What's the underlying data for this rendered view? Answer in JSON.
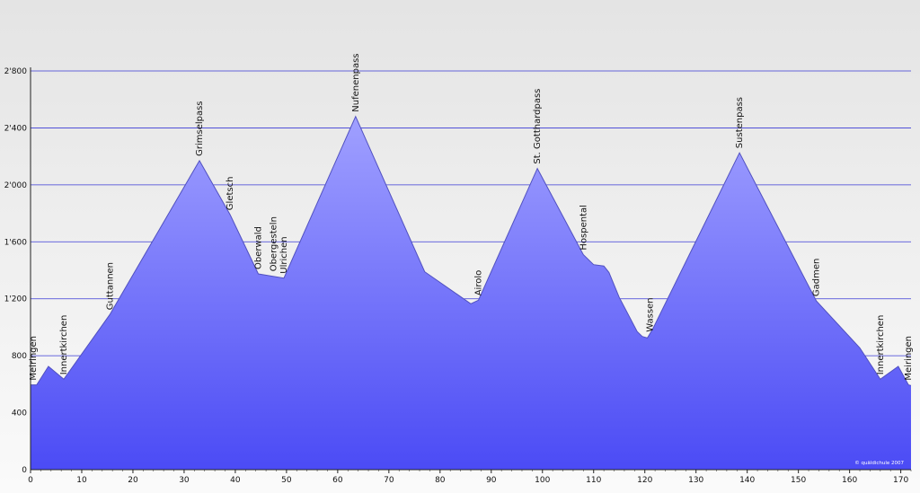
{
  "chart_data": {
    "type": "area",
    "title": "",
    "xlabel": "",
    "ylabel": "",
    "xlim": [
      0,
      172
    ],
    "ylim": [
      0,
      2800
    ],
    "x_ticks": [
      0,
      10,
      20,
      30,
      40,
      50,
      60,
      70,
      80,
      90,
      100,
      110,
      120,
      130,
      140,
      150,
      160,
      170
    ],
    "y_ticks": [
      {
        "value": 0,
        "label": "0"
      },
      {
        "value": 400,
        "label": "400"
      },
      {
        "value": 800,
        "label": "800"
      },
      {
        "value": 1200,
        "label": "1'200"
      },
      {
        "value": 1600,
        "label": "1'600"
      },
      {
        "value": 2000,
        "label": "2'000"
      },
      {
        "value": 2400,
        "label": "2'400"
      },
      {
        "value": 2800,
        "label": "2'800"
      }
    ],
    "grid": true,
    "colors": {
      "fill_top": "#a0a0ff",
      "fill_bottom": "#4b4bf5",
      "line": "#5050c0",
      "grid_line": "#3a3ad6",
      "background_top": "#e4e4e4",
      "background_bottom": "#fafafa"
    },
    "series": [
      {
        "x": [
          0,
          1.2,
          3.5,
          6.5,
          15.5,
          33,
          39,
          44.5,
          49.5,
          63.5,
          77,
          86,
          87.5,
          99,
          108,
          110,
          112,
          113,
          115,
          118.5,
          119.5,
          120.5,
          121.5,
          138.5,
          153.5,
          162,
          166,
          169.5,
          171.5,
          172
        ],
        "y": [
          595,
          595,
          725,
          635,
          1090,
          2170,
          1790,
          1375,
          1345,
          2480,
          1390,
          1165,
          1190,
          2115,
          1510,
          1440,
          1430,
          1385,
          1210,
          970,
          935,
          925,
          985,
          2225,
          1185,
          855,
          635,
          725,
          595,
          590
        ]
      }
    ],
    "annotations": [
      {
        "label": "Meiringen",
        "x": 0.5,
        "y": 595
      },
      {
        "label": "Innertkirchen",
        "x": 6.5,
        "y": 635
      },
      {
        "label": "Guttannen",
        "x": 15.5,
        "y": 1090
      },
      {
        "label": "Grimselpass",
        "x": 33,
        "y": 2170
      },
      {
        "label": "Gletsch",
        "x": 39,
        "y": 1790
      },
      {
        "label": "Oberwald",
        "x": 44.5,
        "y": 1375
      },
      {
        "label": "Obergesteln",
        "x": 47.5,
        "y": 1360
      },
      {
        "label": "Ulrichen",
        "x": 49.5,
        "y": 1345
      },
      {
        "label": "Nufenenpass",
        "x": 63.5,
        "y": 2480
      },
      {
        "label": "Airolo",
        "x": 87.5,
        "y": 1190
      },
      {
        "label": "St. Gotthardpass",
        "x": 99,
        "y": 2115
      },
      {
        "label": "Hospental",
        "x": 108,
        "y": 1510
      },
      {
        "label": "Wassen",
        "x": 121,
        "y": 935
      },
      {
        "label": "Sustenpass",
        "x": 138.5,
        "y": 2225
      },
      {
        "label": "Gadmen",
        "x": 153.5,
        "y": 1185
      },
      {
        "label": "Innertkirchen",
        "x": 166,
        "y": 635
      },
      {
        "label": "Meiringen",
        "x": 171.5,
        "y": 595
      }
    ],
    "credit": "© quäldichule 2007"
  }
}
